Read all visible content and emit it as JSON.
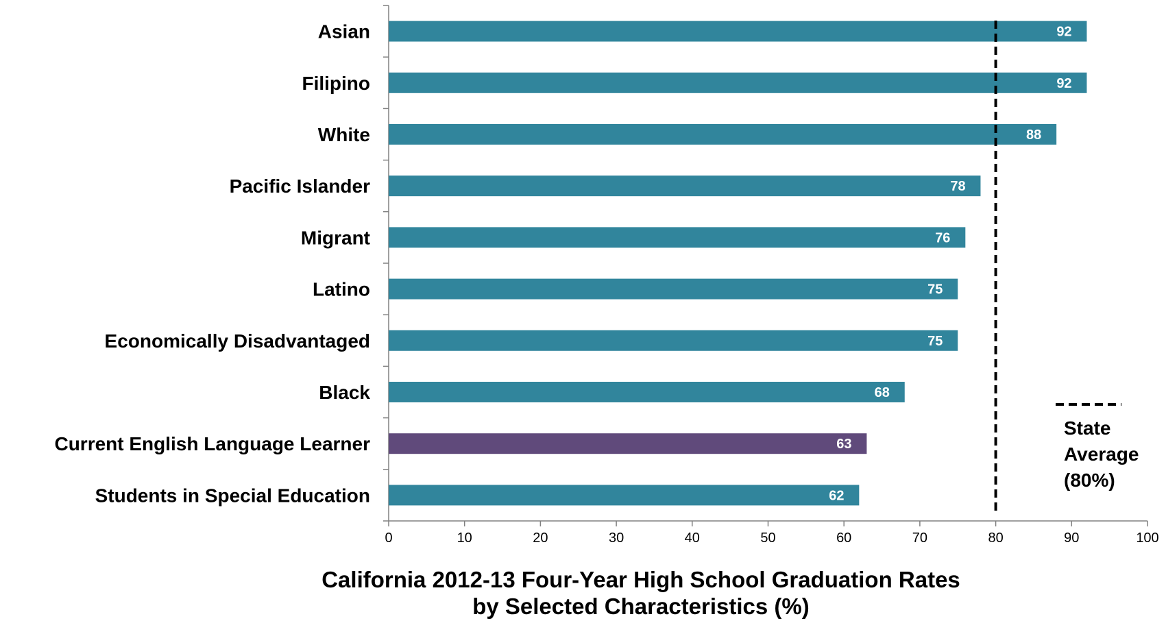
{
  "chart_data": {
    "type": "bar",
    "orientation": "horizontal",
    "title": "California 2012-13 Four-Year High School Graduation Rates",
    "subtitle": "by Selected Characteristics (%)",
    "categories": [
      "Asian",
      "Filipino",
      "White",
      "Pacific Islander",
      "Migrant",
      "Latino",
      "Economically Disadvantaged",
      "Black",
      "Current English Language Learner",
      "Students in Special Education"
    ],
    "values": [
      92,
      92,
      88,
      78,
      76,
      75,
      75,
      68,
      63,
      62
    ],
    "data_labels": [
      "92",
      "92",
      "88",
      "78",
      "76",
      "75",
      "75",
      "68",
      "63",
      "62"
    ],
    "xlim": [
      0,
      100
    ],
    "x_ticks": [
      0,
      10,
      20,
      30,
      40,
      50,
      60,
      70,
      80,
      90,
      100
    ],
    "x_tick_labels": [
      "0",
      "10",
      "20",
      "30",
      "40",
      "50",
      "60",
      "70",
      "80",
      "90",
      "100"
    ],
    "grid": false,
    "reference_line": {
      "value": 80,
      "style": "dashed"
    },
    "legend": {
      "placement": "bottom-right",
      "lines": [
        "State",
        "Average",
        "(80%)"
      ]
    },
    "colors": {
      "bar": "#31859c",
      "highlight_bar": "#604a7b",
      "highlight_category": "Current English Language Learner",
      "reference_line": "#000000",
      "axis": "#808080"
    }
  }
}
